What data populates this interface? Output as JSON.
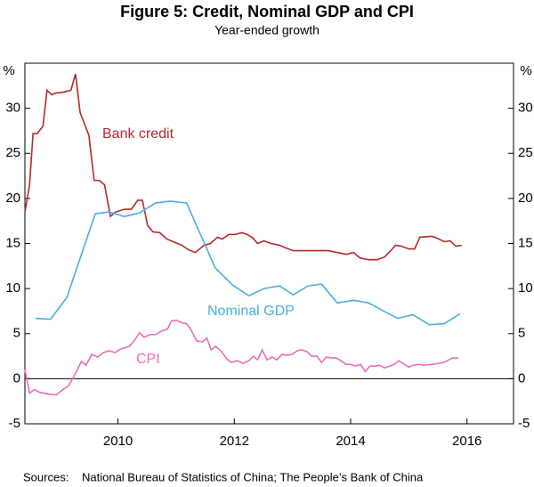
{
  "chart_data": {
    "type": "line",
    "title": "Figure 5: Credit, Nominal GDP and CPI",
    "subtitle": "Year-ended growth",
    "y_unit": "%",
    "sources_label": "Sources:",
    "sources": "National Bureau of Statistics of China; The People’s Bank of China",
    "xlim": [
      2008.9,
      2017.3
    ],
    "xticks": [
      {
        "value": 2010.5,
        "label": "2010"
      },
      {
        "value": 2012.5,
        "label": "2012"
      },
      {
        "value": 2014.5,
        "label": "2014"
      },
      {
        "value": 2016.5,
        "label": "2016"
      }
    ],
    "ylim": [
      -5,
      35
    ],
    "yticks": [
      -5,
      0,
      5,
      10,
      15,
      20,
      25,
      30
    ],
    "y2lim": [
      -5,
      35
    ],
    "y2ticks": [
      -5,
      0,
      5,
      10,
      15,
      20,
      25,
      30
    ],
    "series": [
      {
        "name": "Bank credit",
        "color": "#b5272d",
        "x": [
          2008.9,
          2008.98,
          2009.04,
          2009.11,
          2009.21,
          2009.28,
          2009.36,
          2009.44,
          2009.57,
          2009.69,
          2009.77,
          2009.85,
          2010.0,
          2010.09,
          2010.18,
          2010.27,
          2010.37,
          2010.46,
          2010.61,
          2010.73,
          2010.84,
          2010.92,
          2011.01,
          2011.1,
          2011.22,
          2011.34,
          2011.45,
          2011.6,
          2011.71,
          2011.83,
          2011.98,
          2012.09,
          2012.21,
          2012.29,
          2012.41,
          2012.52,
          2012.63,
          2012.72,
          2012.82,
          2012.9,
          2013.01,
          2013.13,
          2013.28,
          2013.39,
          2013.51,
          2013.66,
          2013.82,
          2013.97,
          2014.12,
          2014.27,
          2014.43,
          2014.55,
          2014.66,
          2014.81,
          2014.96,
          2015.08,
          2015.19,
          2015.27,
          2015.37,
          2015.5,
          2015.6,
          2015.69,
          2015.88,
          2015.95,
          2016.11,
          2016.21,
          2016.31,
          2016.41
        ],
        "values": [
          18.5,
          21.5,
          27.2,
          27.2,
          28,
          32,
          31.5,
          31.7,
          31.8,
          32,
          33.8,
          29.5,
          27,
          22,
          22,
          21.5,
          18,
          18.5,
          18.8,
          18.8,
          19.8,
          19.8,
          17,
          16.3,
          16.2,
          15.5,
          15.2,
          14.8,
          14.3,
          14,
          14.8,
          15,
          15.7,
          15.5,
          16,
          16,
          16.2,
          16,
          15.6,
          15,
          15.3,
          15,
          14.8,
          14.5,
          14.2,
          14.2,
          14.2,
          14.2,
          14.2,
          14,
          13.8,
          14,
          13.4,
          13.2,
          13.2,
          13.5,
          14.2,
          14.8,
          14.7,
          14.4,
          14.4,
          15.7,
          15.8,
          15.7,
          15.2,
          15.3,
          14.7,
          14.8
        ]
      },
      {
        "name": "Nominal GDP",
        "color": "#4aaee0",
        "x": [
          2009.08,
          2009.34,
          2009.62,
          2010.11,
          2010.34,
          2010.61,
          2010.87,
          2011.15,
          2011.4,
          2011.68,
          2012.17,
          2012.47,
          2012.75,
          2013.01,
          2013.28,
          2013.51,
          2013.77,
          2014.0,
          2014.27,
          2014.55,
          2014.81,
          2015.04,
          2015.31,
          2015.57,
          2015.85,
          2016.11,
          2016.38
        ],
        "values": [
          6.7,
          6.6,
          9.0,
          18.3,
          18.5,
          18.0,
          18.4,
          19.5,
          19.7,
          19.5,
          12.3,
          10.4,
          9.2,
          10.0,
          10.3,
          9.3,
          10.3,
          10.5,
          8.4,
          8.7,
          8.4,
          7.6,
          6.7,
          7.1,
          6.0,
          6.1,
          7.2
        ]
      },
      {
        "name": "CPI",
        "color": "#e86fb5",
        "x": [
          2008.9,
          2008.98,
          2009.06,
          2009.15,
          2009.3,
          2009.44,
          2009.55,
          2009.65,
          2009.77,
          2009.87,
          2009.95,
          2010.05,
          2010.15,
          2010.25,
          2010.35,
          2010.45,
          2010.55,
          2010.7,
          2010.8,
          2010.87,
          2010.95,
          2011.05,
          2011.15,
          2011.25,
          2011.35,
          2011.42,
          2011.5,
          2011.6,
          2011.68,
          2011.75,
          2011.85,
          2011.95,
          2012.03,
          2012.1,
          2012.18,
          2012.28,
          2012.37,
          2012.45,
          2012.55,
          2012.65,
          2012.75,
          2012.83,
          2012.9,
          2012.98,
          2013.06,
          2013.15,
          2013.23,
          2013.32,
          2013.4,
          2013.5,
          2013.58,
          2013.66,
          2013.75,
          2013.83,
          2013.92,
          2014.0,
          2014.08,
          2014.17,
          2014.25,
          2014.33,
          2014.42,
          2014.5,
          2014.58,
          2014.67,
          2014.75,
          2014.83,
          2014.92,
          2015.0,
          2015.08,
          2015.17,
          2015.25,
          2015.33,
          2015.42,
          2015.5,
          2015.58,
          2015.67,
          2015.75,
          2015.92,
          2016.1,
          2016.25,
          2016.35
        ],
        "values": [
          1.0,
          -1.6,
          -1.2,
          -1.5,
          -1.7,
          -1.8,
          -1.2,
          -0.8,
          0.6,
          1.9,
          1.5,
          2.7,
          2.4,
          2.9,
          3.1,
          2.9,
          3.3,
          3.6,
          4.4,
          5.1,
          4.6,
          4.9,
          4.9,
          5.3,
          5.5,
          6.4,
          6.5,
          6.2,
          6.1,
          5.5,
          4.2,
          4.1,
          4.5,
          3.2,
          3.6,
          3.0,
          2.2,
          1.8,
          2.0,
          1.7,
          2.0,
          2.5,
          2.1,
          3.2,
          2.1,
          2.4,
          2.1,
          2.7,
          2.6,
          2.7,
          3.1,
          3.2,
          3.0,
          2.5,
          2.5,
          1.8,
          2.4,
          2.3,
          2.3,
          2.0,
          1.6,
          1.6,
          1.4,
          1.6,
          0.8,
          1.4,
          1.4,
          1.5,
          1.2,
          1.4,
          1.6,
          2.0,
          1.6,
          1.3,
          1.5,
          1.6,
          1.5,
          1.6,
          1.8,
          2.3,
          2.3
        ]
      }
    ]
  }
}
